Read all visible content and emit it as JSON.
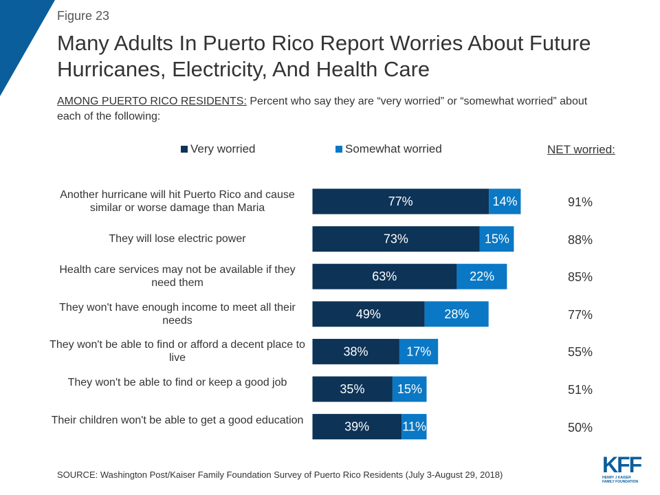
{
  "figure_label": "Figure 23",
  "title": "Many Adults In Puerto Rico Report Worries About Future Hurricanes, Electricity, And Health Care",
  "subtitle_prefix": "AMONG PUERTO RICO RESIDENTS:",
  "subtitle_rest": " Percent who say they are “very worried” or “somewhat worried” about each of the following:",
  "net_header": "NET worried:",
  "source": "SOURCE: Washington Post/Kaiser Family Foundation Survey of Puerto Rico Residents (July 3-August 29, 2018)",
  "logo": {
    "text": "KFF",
    "line1": "HENRY J KAISER",
    "line2": "FAMILY FOUNDATION"
  },
  "colors": {
    "very": "#0d3357",
    "somewhat": "#0a78c4",
    "accent": "#0b5e9c"
  },
  "chart_data": {
    "type": "bar",
    "orientation": "horizontal",
    "stacked": true,
    "categories": [
      "Another hurricane will hit Puerto Rico and cause similar or worse damage than Maria",
      "They will lose electric power",
      "Health care services may not be available if they need them",
      "They won't have enough income to meet all their needs",
      "They won't be able to find or afford a decent place to live",
      "They won't be able to find or keep a good job",
      "Their children won't be able to get a good education"
    ],
    "series": [
      {
        "name": "Very worried",
        "values": [
          77,
          73,
          63,
          49,
          38,
          35,
          39
        ],
        "labels": [
          "77%",
          "73%",
          "63%",
          "49%",
          "38%",
          "35%",
          "39%"
        ]
      },
      {
        "name": "Somewhat worried",
        "values": [
          14,
          15,
          22,
          28,
          17,
          15,
          11
        ],
        "labels": [
          "14%",
          "15%",
          "22%",
          "28%",
          "17%",
          "15%",
          "11%"
        ]
      }
    ],
    "net": [
      "91%",
      "88%",
      "85%",
      "77%",
      "55%",
      "51%",
      "50%"
    ],
    "legend_position": "top",
    "grid": false
  }
}
